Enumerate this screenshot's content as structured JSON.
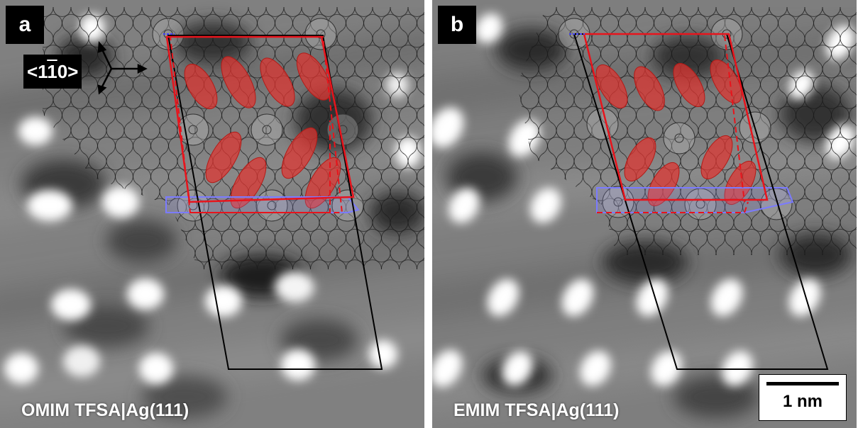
{
  "panels": [
    {
      "label": "a",
      "caption": "OMIM TFSA|Ag(111)"
    },
    {
      "label": "b",
      "caption": "EMIM TFSA|Ag(111)"
    }
  ],
  "direction_label": {
    "prefix": "<1",
    "bar_digit": "1",
    "suffix": "0>"
  },
  "scale_bar": "1 nm",
  "colors": {
    "unit_cell_black": "#000000",
    "unit_cell_red": "#e8141c",
    "ion_fill": "#e0332f",
    "substrate_blue": "#7b7bff",
    "label_bg": "#000000",
    "label_text": "#ffffff"
  },
  "icons": [
    "axis-arrows-icon"
  ]
}
